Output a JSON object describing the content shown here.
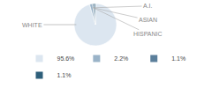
{
  "chart_data": {
    "type": "pie",
    "categories": [
      "WHITE",
      "A.I.",
      "ASIAN",
      "HISPANIC"
    ],
    "values": [
      95.6,
      2.2,
      1.1,
      1.1
    ],
    "value_labels": [
      "95.6%",
      "2.2%",
      "1.1%",
      "1.1%"
    ],
    "colors": [
      "#dce6f0",
      "#9ab3c8",
      "#5b7f9b",
      "#2e5f7a"
    ],
    "legend": "bottom"
  }
}
